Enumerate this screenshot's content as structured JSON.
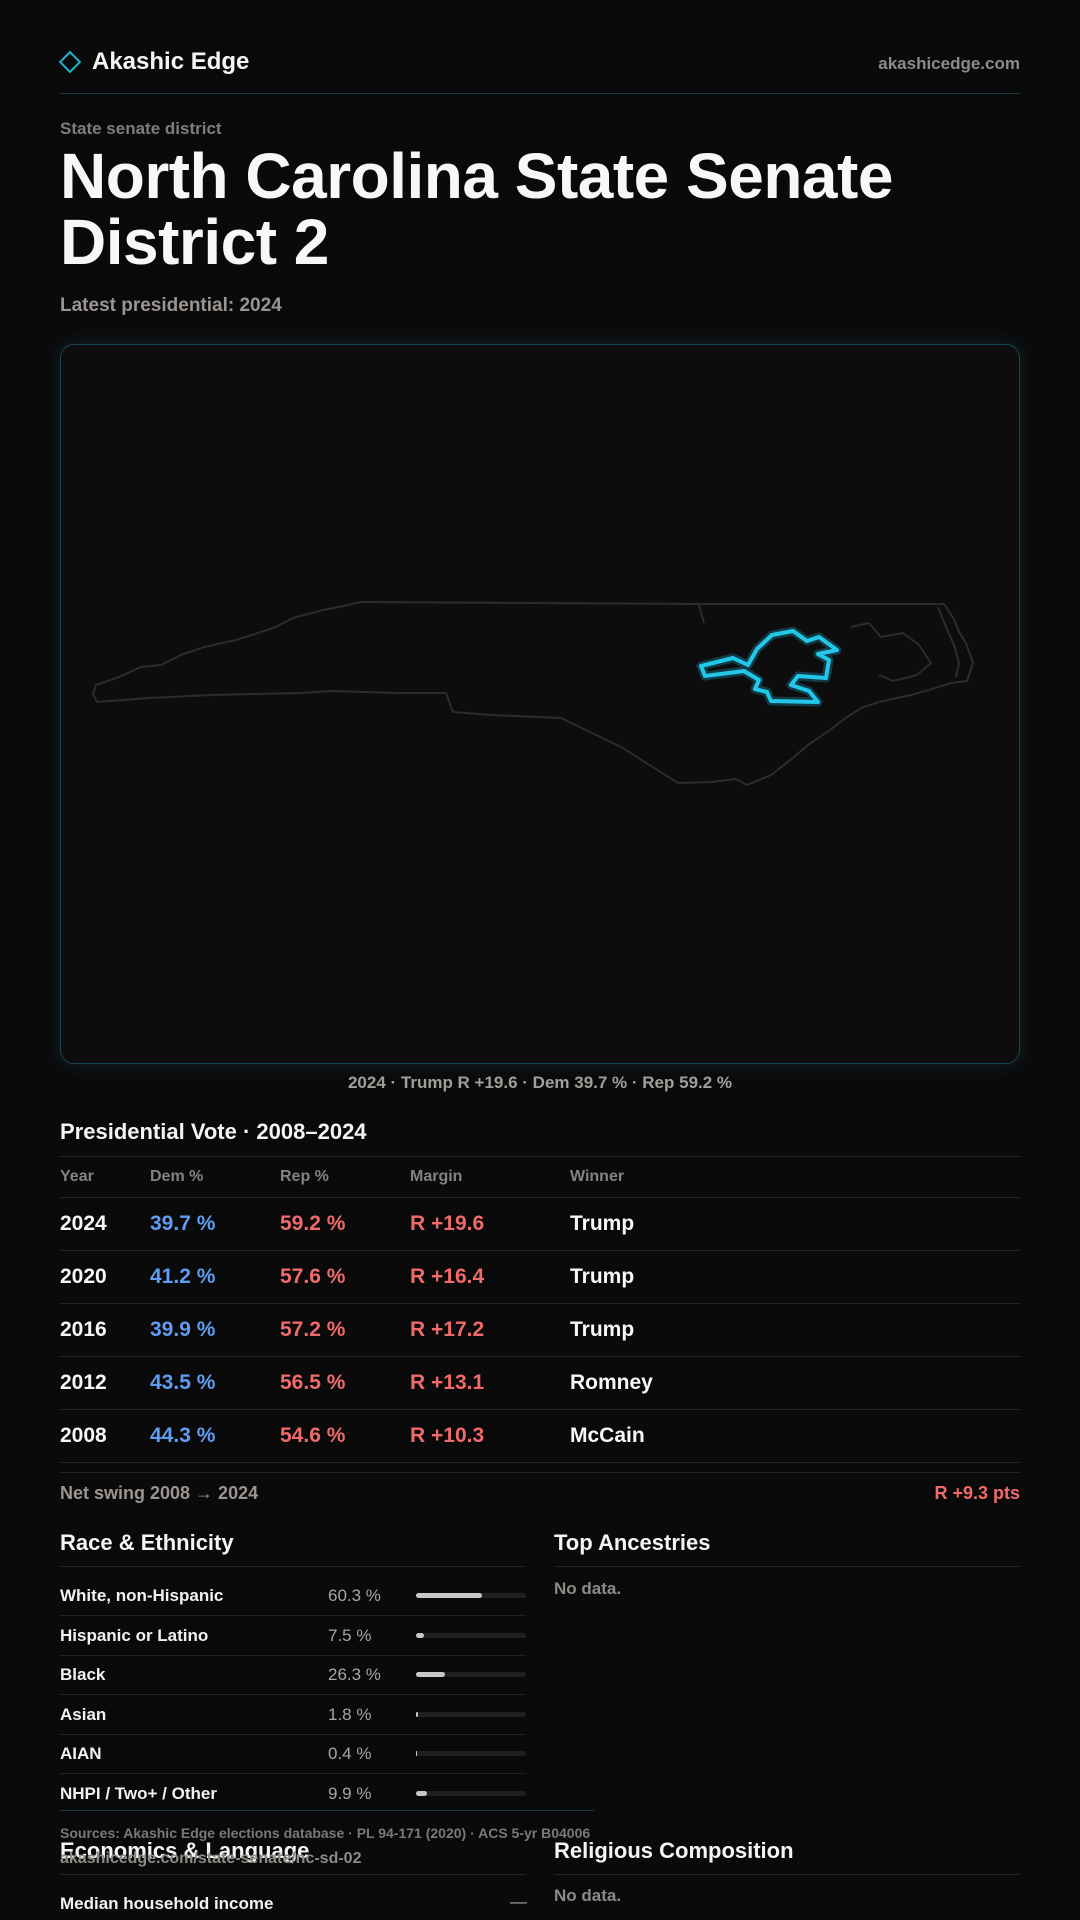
{
  "header": {
    "brand": "Akashic Edge",
    "site_url": "akashicedge.com"
  },
  "page": {
    "eyebrow": "State senate district",
    "title": "North Carolina State Senate District 2",
    "subtitle": "Latest presidential: 2024",
    "map_caption": "2024 · Trump R +19.6 · Dem 39.7 % · Rep 59.2 %"
  },
  "colors": {
    "accent": "#1fb3cc",
    "district_outline": "#22c8ea",
    "dem": "#5f9cf2",
    "rep": "#ef6a6a",
    "background": "#0b0a0b"
  },
  "presidential": {
    "title": "Presidential Vote · 2008–2024",
    "headers": [
      "Year",
      "Dem %",
      "Rep %",
      "Margin",
      "Winner"
    ],
    "rows": [
      {
        "year": "2024",
        "dem": "39.7 %",
        "rep": "59.2 %",
        "margin": "R +19.6",
        "winner": "Trump"
      },
      {
        "year": "2020",
        "dem": "41.2 %",
        "rep": "57.6 %",
        "margin": "R +16.4",
        "winner": "Trump"
      },
      {
        "year": "2016",
        "dem": "39.9 %",
        "rep": "57.2 %",
        "margin": "R +17.2",
        "winner": "Trump"
      },
      {
        "year": "2012",
        "dem": "43.5 %",
        "rep": "56.5 %",
        "margin": "R +13.1",
        "winner": "Romney"
      },
      {
        "year": "2008",
        "dem": "44.3 %",
        "rep": "54.6 %",
        "margin": "R +10.3",
        "winner": "McCain"
      }
    ],
    "swing_label": "Net swing 2008 → 2024",
    "swing_value": "R +9.3 pts"
  },
  "race": {
    "title": "Race & Ethnicity",
    "rows": [
      {
        "label": "White, non-Hispanic",
        "pct": "60.3 %",
        "value": 60.3
      },
      {
        "label": "Hispanic or Latino",
        "pct": "7.5 %",
        "value": 7.5
      },
      {
        "label": "Black",
        "pct": "26.3 %",
        "value": 26.3
      },
      {
        "label": "Asian",
        "pct": "1.8 %",
        "value": 1.8
      },
      {
        "label": "AIAN",
        "pct": "0.4 %",
        "value": 0.4
      },
      {
        "label": "NHPI / Two+ / Other",
        "pct": "9.9 %",
        "value": 9.9
      }
    ]
  },
  "ancestries": {
    "title": "Top Ancestries",
    "empty": "No data."
  },
  "economics": {
    "title": "Economics & Language",
    "rows": [
      {
        "label": "Median household income",
        "value": "—"
      }
    ]
  },
  "religion": {
    "title": "Religious Composition",
    "empty": "No data."
  },
  "footer": {
    "sources": "Sources: Akashic Edge elections database · PL 94-171 (2020) · ACS 5-yr B04006",
    "url": "akashicedge.com/state-senate/nc-sd-02"
  }
}
